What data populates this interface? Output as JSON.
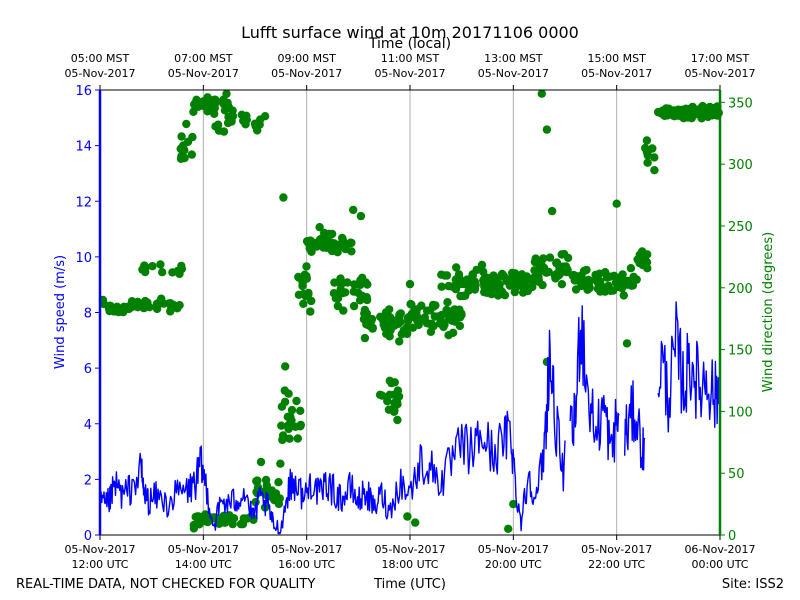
{
  "chart_data": {
    "type": "line+scatter",
    "title": "Lufft surface wind at 10m 20171106 0000",
    "top_axis_label": "Time (local)",
    "xlabel": "Time (UTC)",
    "ylabel_left": "Wind speed (m/s)",
    "ylabel_right": "Wind direction (degrees)",
    "footer_left": "REAL-TIME DATA, NOT CHECKED FOR QUALITY",
    "footer_right": "Site: ISS2",
    "x_range_hours_utc": [
      12,
      24
    ],
    "ylim_left": [
      0,
      16
    ],
    "ylim_right": [
      0,
      360
    ],
    "grid": "vertical",
    "colors": {
      "speed": "#0000ff",
      "direction": "#008000",
      "grid": "#b0b0b0",
      "axis": "#000000"
    },
    "bottom_ticks": [
      {
        "hour": 12,
        "date": "05-Nov-2017",
        "time": "12:00 UTC"
      },
      {
        "hour": 14,
        "date": "05-Nov-2017",
        "time": "14:00 UTC"
      },
      {
        "hour": 16,
        "date": "05-Nov-2017",
        "time": "16:00 UTC"
      },
      {
        "hour": 18,
        "date": "05-Nov-2017",
        "time": "18:00 UTC"
      },
      {
        "hour": 20,
        "date": "05-Nov-2017",
        "time": "20:00 UTC"
      },
      {
        "hour": 22,
        "date": "05-Nov-2017",
        "time": "22:00 UTC"
      },
      {
        "hour": 24,
        "date": "06-Nov-2017",
        "time": "00:00 UTC"
      }
    ],
    "top_ticks": [
      {
        "hour": 12,
        "time": "05:00 MST",
        "date": "05-Nov-2017"
      },
      {
        "hour": 14,
        "time": "07:00 MST",
        "date": "05-Nov-2017"
      },
      {
        "hour": 16,
        "time": "09:00 MST",
        "date": "05-Nov-2017"
      },
      {
        "hour": 18,
        "time": "11:00 MST",
        "date": "05-Nov-2017"
      },
      {
        "hour": 20,
        "time": "13:00 MST",
        "date": "05-Nov-2017"
      },
      {
        "hour": 22,
        "time": "15:00 MST",
        "date": "05-Nov-2017"
      },
      {
        "hour": 24,
        "time": "17:00 MST",
        "date": "05-Nov-2017"
      }
    ],
    "left_ticks": [
      "0",
      "2",
      "4",
      "6",
      "8",
      "10",
      "12",
      "14",
      "16"
    ],
    "right_ticks": [
      "0",
      "50",
      "100",
      "150",
      "200",
      "250",
      "300",
      "350"
    ],
    "wind_speed_keypoints": [
      [
        12.0,
        1.3
      ],
      [
        12.1,
        1.0
      ],
      [
        12.2,
        1.3
      ],
      [
        12.3,
        1.8
      ],
      [
        12.45,
        1.4
      ],
      [
        12.6,
        1.7
      ],
      [
        12.8,
        2.3
      ],
      [
        12.85,
        1.5
      ],
      [
        12.95,
        1.2
      ],
      [
        13.1,
        1.4
      ],
      [
        13.3,
        1.1
      ],
      [
        13.5,
        1.5
      ],
      [
        13.7,
        1.6
      ],
      [
        13.85,
        1.9
      ],
      [
        13.95,
        2.5
      ],
      [
        14.05,
        1.8
      ],
      [
        14.2,
        0.3
      ],
      [
        14.35,
        1.2
      ],
      [
        14.5,
        1.1
      ],
      [
        14.65,
        1.3
      ],
      [
        14.8,
        1.6
      ],
      [
        14.95,
        0.6
      ],
      [
        15.1,
        1.3
      ],
      [
        15.25,
        1.0
      ],
      [
        15.35,
        0.4
      ],
      [
        15.5,
        0.2
      ],
      [
        15.65,
        1.7
      ],
      [
        15.8,
        1.9
      ],
      [
        15.95,
        1.3
      ],
      [
        16.1,
        2.0
      ],
      [
        16.25,
        1.4
      ],
      [
        16.4,
        1.9
      ],
      [
        16.55,
        1.5
      ],
      [
        16.7,
        1.3
      ],
      [
        16.85,
        1.7
      ],
      [
        17.0,
        1.2
      ],
      [
        17.15,
        1.6
      ],
      [
        17.3,
        0.9
      ],
      [
        17.45,
        1.5
      ],
      [
        17.6,
        0.8
      ],
      [
        17.8,
        1.9
      ],
      [
        18.0,
        1.5
      ],
      [
        18.2,
        2.6
      ],
      [
        18.4,
        2.4
      ],
      [
        18.6,
        1.9
      ],
      [
        18.8,
        2.6
      ],
      [
        19.0,
        3.2
      ],
      [
        19.2,
        3.0
      ],
      [
        19.4,
        3.6
      ],
      [
        19.6,
        2.9
      ],
      [
        19.8,
        3.3
      ],
      [
        19.95,
        3.8
      ],
      [
        20.05,
        1.6
      ],
      [
        20.15,
        0.5
      ],
      [
        20.3,
        2.2
      ],
      [
        20.45,
        1.3
      ],
      [
        20.6,
        3.1
      ],
      [
        20.7,
        6.5
      ],
      [
        20.8,
        4.4
      ],
      [
        20.95,
        2.2
      ],
      [
        21.1,
        3.6
      ],
      [
        21.2,
        4.1
      ],
      [
        21.3,
        8.0
      ],
      [
        21.45,
        5.0
      ],
      [
        21.6,
        3.6
      ],
      [
        21.75,
        4.6
      ],
      [
        21.9,
        2.9
      ],
      [
        22.0,
        4.2
      ],
      [
        22.1,
        3.4
      ],
      [
        22.2,
        3.8
      ],
      [
        22.35,
        4.5
      ],
      [
        22.5,
        3.1
      ],
      [
        22.6,
        2.6
      ],
      [
        22.7,
        3.7
      ],
      [
        22.85,
        6.4
      ],
      [
        23.0,
        5.0
      ],
      [
        23.15,
        6.7
      ],
      [
        23.3,
        5.4
      ],
      [
        23.45,
        6.3
      ],
      [
        23.6,
        5.2
      ],
      [
        23.75,
        5.8
      ],
      [
        23.9,
        4.9
      ],
      [
        24.0,
        5.4
      ]
    ],
    "wind_speed_gaps": [
      [
        21.0,
        21.1
      ],
      [
        22.05,
        22.15
      ],
      [
        22.55,
        22.8
      ]
    ],
    "wind_direction_clusters": [
      {
        "range": [
          12.0,
          13.55
        ],
        "center": 185,
        "spread": 8,
        "count": 50
      },
      {
        "range": [
          12.75,
          13.6
        ],
        "center": 215,
        "spread": 10,
        "count": 12
      },
      {
        "range": [
          13.55,
          13.8
        ],
        "center": 315,
        "spread": 22,
        "count": 12
      },
      {
        "range": [
          13.8,
          14.5
        ],
        "center": 348,
        "spread": 10,
        "count": 40
      },
      {
        "range": [
          14.2,
          15.2
        ],
        "center": 335,
        "spread": 15,
        "count": 20
      },
      {
        "range": [
          13.8,
          15.0
        ],
        "center": 12,
        "spread": 8,
        "count": 40
      },
      {
        "range": [
          15.0,
          15.5
        ],
        "center": 40,
        "spread": 25,
        "count": 22
      },
      {
        "range": [
          15.5,
          15.9
        ],
        "center": 95,
        "spread": 45,
        "count": 22
      },
      {
        "range": [
          15.8,
          16.1
        ],
        "center": 200,
        "spread": 25,
        "count": 18
      },
      {
        "range": [
          16.0,
          16.9
        ],
        "center": 235,
        "spread": 12,
        "count": 50
      },
      {
        "range": [
          16.5,
          17.2
        ],
        "center": 195,
        "spread": 18,
        "count": 30
      },
      {
        "range": [
          17.1,
          18.0
        ],
        "center": 170,
        "spread": 18,
        "count": 45
      },
      {
        "range": [
          17.3,
          17.8
        ],
        "center": 110,
        "spread": 20,
        "count": 18
      },
      {
        "range": [
          18.0,
          19.0
        ],
        "center": 175,
        "spread": 20,
        "count": 55
      },
      {
        "range": [
          18.6,
          19.6
        ],
        "center": 205,
        "spread": 18,
        "count": 40
      },
      {
        "range": [
          19.4,
          20.4
        ],
        "center": 205,
        "spread": 15,
        "count": 55
      },
      {
        "range": [
          20.4,
          21.2
        ],
        "center": 215,
        "spread": 18,
        "count": 40
      },
      {
        "range": [
          21.2,
          22.4
        ],
        "center": 205,
        "spread": 15,
        "count": 60
      },
      {
        "range": [
          22.4,
          22.6
        ],
        "center": 225,
        "spread": 12,
        "count": 14
      },
      {
        "range": [
          22.55,
          22.75
        ],
        "center": 310,
        "spread": 20,
        "count": 10
      },
      {
        "range": [
          22.75,
          24.0
        ],
        "center": 342,
        "spread": 7,
        "count": 110
      }
    ],
    "wind_direction_points": [
      [
        15.55,
        273
      ],
      [
        16.25,
        249
      ],
      [
        16.9,
        263
      ],
      [
        17.05,
        258
      ],
      [
        18.0,
        203
      ],
      [
        20.55,
        357
      ],
      [
        20.65,
        328
      ],
      [
        20.75,
        262
      ],
      [
        20.9,
        211
      ],
      [
        20.65,
        140
      ],
      [
        22.0,
        268
      ],
      [
        22.2,
        155
      ],
      [
        20.0,
        25
      ],
      [
        19.9,
        5
      ],
      [
        18.1,
        10
      ],
      [
        17.95,
        15
      ]
    ]
  }
}
